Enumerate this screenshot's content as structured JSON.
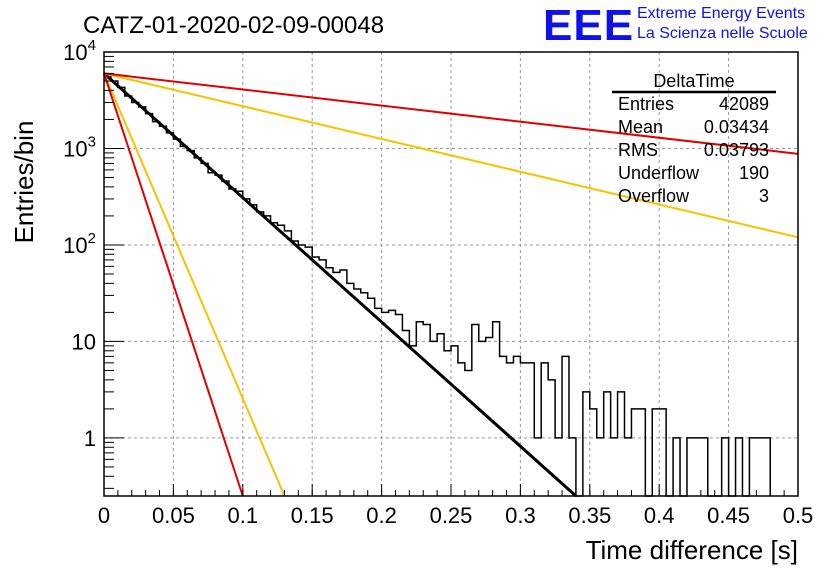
{
  "logo": {
    "mark": "EEE",
    "line1": "Extreme Energy Events",
    "line2": "La Scienza nelle Scuole",
    "color": "#1010e8"
  },
  "chart_data": {
    "type": "histogram",
    "title": "CATZ-01-2020-02-09-00048",
    "xlabel": "Time difference [s]",
    "ylabel": "Entries/bin",
    "xlim": [
      0,
      0.5
    ],
    "ylim": [
      0.25,
      10000
    ],
    "y_scale": "log",
    "grid": true,
    "x_ticks": [
      "0",
      "0.05",
      "0.1",
      "0.15",
      "0.2",
      "0.25",
      "0.3",
      "0.35",
      "0.4",
      "0.45",
      "0.5"
    ],
    "y_ticks": [
      {
        "value": 1,
        "label": "1"
      },
      {
        "value": 10,
        "label": "10"
      },
      {
        "value": 100,
        "label": "10",
        "exp": "2"
      },
      {
        "value": 1000,
        "label": "10",
        "exp": "3"
      },
      {
        "value": 10000,
        "label": "10",
        "exp": "4"
      }
    ],
    "bin_width": 0.005,
    "histogram_counts": [
      5900,
      5000,
      4300,
      3500,
      3000,
      2700,
      2300,
      1900,
      1700,
      1450,
      1250,
      1050,
      950,
      800,
      700,
      560,
      530,
      460,
      380,
      360,
      300,
      260,
      220,
      200,
      170,
      160,
      140,
      110,
      100,
      95,
      75,
      70,
      58,
      52,
      55,
      40,
      35,
      32,
      28,
      22,
      20,
      21,
      19,
      13,
      9,
      16,
      15,
      10,
      12,
      8,
      9,
      6,
      5,
      15,
      10,
      11,
      16,
      7,
      6,
      7,
      6,
      6,
      1,
      6,
      4,
      1,
      7,
      1,
      0.1,
      3,
      2,
      1,
      3,
      1,
      3,
      1,
      2,
      2,
      0.1,
      2,
      2,
      0.1,
      1,
      0.1,
      1,
      1,
      1,
      0.1,
      0.1,
      1,
      0.1,
      1,
      0.1,
      1,
      1,
      1
    ],
    "fits": [
      {
        "color": "#000000",
        "y0": 6000,
        "x1": 0.34,
        "y1": 0.25
      },
      {
        "color": "#f5c400",
        "y0": 6000,
        "x1": 0.5,
        "y1": 120
      },
      {
        "color": "#e00000",
        "y0": 6000,
        "x1": 0.5,
        "y1": 880
      },
      {
        "color": "#f5c400",
        "y0": 6000,
        "x1": 0.13,
        "y1": 0.25
      },
      {
        "color": "#e00000",
        "y0": 6000,
        "x1": 0.1,
        "y1": 0.25
      }
    ],
    "stats": {
      "name": "DeltaTime",
      "rows": [
        {
          "label": "Entries",
          "value": "42089"
        },
        {
          "label": "Mean",
          "value": "0.03434"
        },
        {
          "label": "RMS",
          "value": "0.03793"
        },
        {
          "label": "Underflow",
          "value": "190"
        },
        {
          "label": "Overflow",
          "value": "3"
        }
      ]
    }
  }
}
